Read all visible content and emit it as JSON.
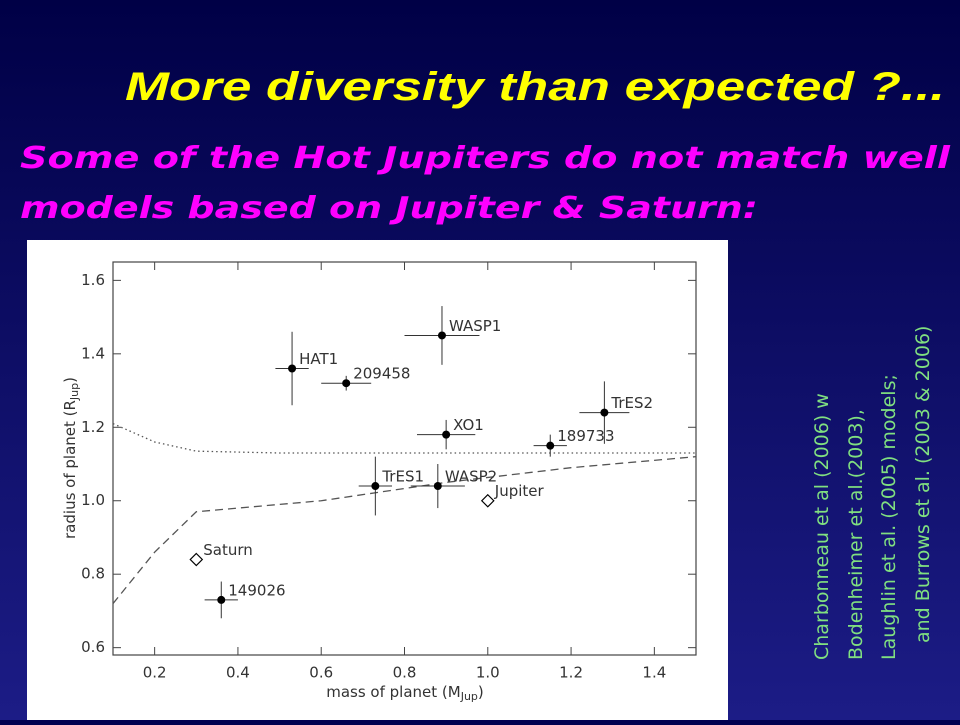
{
  "slide": {
    "title": "More diversity than expected ?...",
    "subtitle": [
      "Some of the Hot Jupiters do not match well",
      "models based on Jupiter & Saturn:"
    ],
    "citation": [
      "Charbonneau et al (2006) w",
      "Bodenheimer et al.(2003),",
      "Laughlin et al. (2005) models;",
      "and Burrows et al. (2003 & 2006)"
    ]
  },
  "chart_data": {
    "type": "scatter",
    "xlabel": [
      "mass of planet (M",
      "Jup",
      ")"
    ],
    "ylabel": [
      "radius of planet (R",
      "Jup",
      ")"
    ],
    "xlim": [
      0.1,
      1.5
    ],
    "ylim": [
      0.58,
      1.65
    ],
    "xticks": [
      0.2,
      0.4,
      0.6,
      0.8,
      {
        "value": 1,
        "label": "1.0"
      },
      1.2,
      1.4
    ],
    "yticks": [
      0.6,
      0.8,
      {
        "value": 1,
        "label": "1.0"
      },
      1.2,
      1.4,
      1.6
    ],
    "series": [
      {
        "marker": "circle",
        "color": "#000000",
        "labels": [
          "HAT1",
          "209458",
          "WASP1",
          "XO1",
          "189733",
          "TrES2",
          "TrES1",
          "WASP2",
          "149026"
        ],
        "x": [
          0.53,
          0.66,
          0.89,
          0.9,
          1.15,
          1.28,
          0.73,
          0.88,
          0.36
        ],
        "values": [
          1.36,
          1.32,
          1.45,
          1.18,
          1.15,
          1.24,
          1.04,
          1.04,
          0.73
        ],
        "xerr": [
          0.04,
          0.06,
          0.09,
          0.07,
          0.04,
          0.06,
          0.04,
          0.065,
          0.04
        ],
        "yerr": [
          0.1,
          0.02,
          0.08,
          0.04,
          0.03,
          0.085,
          0.08,
          0.06,
          0.05
        ]
      },
      {
        "marker": "diamond",
        "color": "#000000",
        "labels": [
          "Jupiter",
          "Saturn"
        ],
        "x": [
          1.0,
          0.3
        ],
        "values": [
          1.0,
          0.84
        ]
      }
    ],
    "lines": [
      {
        "style": "dotted",
        "x": [
          0.1,
          0.2,
          0.3,
          0.5,
          1.5
        ],
        "values": [
          1.21,
          1.16,
          1.135,
          1.13,
          1.13
        ]
      },
      {
        "style": "dashed",
        "x": [
          0.1,
          0.2,
          0.3,
          0.6,
          0.9,
          1.2,
          1.5
        ],
        "values": [
          0.72,
          0.86,
          0.97,
          1.0,
          1.05,
          1.09,
          1.12
        ]
      }
    ]
  }
}
